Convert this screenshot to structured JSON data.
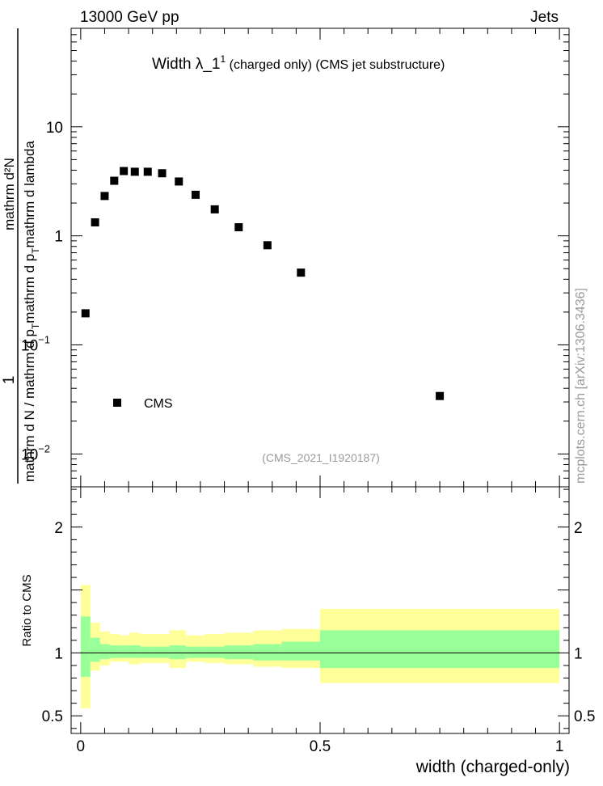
{
  "header": {
    "energy_label": "13000 GeV pp",
    "process_label": "Jets"
  },
  "side_label": "mcplots.cern.ch [arXiv:1306.3436]",
  "colors": {
    "yellow_band": "#ffff99",
    "green_band": "#99ff99",
    "marker": "#000000",
    "watermark": "#999999"
  },
  "chart_data": [
    {
      "type": "scatter",
      "title_main": "Width λ_1",
      "title_sup": "1",
      "title_rest": " (charged only) (CMS jet substructure)",
      "watermark": "(CMS_2021_I1920187)",
      "ylabel_numerator": "1",
      "ylabel_den_a": "mathrm d N / mathrm d p",
      "ylabel_den_sub_a": "T",
      "ylabel_den_b": "mathrm d p",
      "ylabel_den_sub_b": "T",
      "ylabel_den_c": "mathrm d lambda",
      "ylabel_num_full": "mathrm d²N",
      "yscale": "log",
      "ylim": [
        0.005,
        80
      ],
      "xlim": [
        -0.02,
        1.02
      ],
      "y_ticks": [
        {
          "value": 0.01,
          "label": "10",
          "exp": "−2"
        },
        {
          "value": 0.1,
          "label": "10",
          "exp": "−1"
        },
        {
          "value": 1,
          "label": "1",
          "exp": ""
        },
        {
          "value": 10,
          "label": "10",
          "exp": ""
        }
      ],
      "legend": {
        "label": "CMS",
        "position": "lower-left"
      },
      "series": [
        {
          "name": "CMS",
          "x": [
            0.01,
            0.03,
            0.05,
            0.07,
            0.09,
            0.113,
            0.14,
            0.17,
            0.205,
            0.24,
            0.28,
            0.33,
            0.39,
            0.46,
            0.75
          ],
          "y": [
            0.195,
            1.33,
            2.32,
            3.2,
            3.93,
            3.87,
            3.87,
            3.75,
            3.15,
            2.38,
            1.75,
            1.2,
            0.82,
            0.46,
            0.034
          ]
        }
      ]
    },
    {
      "type": "area",
      "ylabel": "Ratio to CMS",
      "xlabel": "width (charged-only)",
      "ylim": [
        0.36,
        2.32
      ],
      "xlim": [
        -0.02,
        1.02
      ],
      "y_ticks": [
        {
          "value": 0.5,
          "label": "0.5"
        },
        {
          "value": 1,
          "label": "1"
        },
        {
          "value": 2,
          "label": "2"
        }
      ],
      "x_ticks": [
        {
          "value": 0,
          "label": "0"
        },
        {
          "value": 0.5,
          "label": "0.5"
        },
        {
          "value": 1,
          "label": "1"
        }
      ],
      "bins": [
        {
          "lo": 0.0,
          "hi": 0.02,
          "y_lo": 0.56,
          "y_hi": 1.54,
          "g_lo": 0.81,
          "g_hi": 1.29
        },
        {
          "lo": 0.02,
          "hi": 0.04,
          "y_lo": 0.86,
          "y_hi": 1.24,
          "g_lo": 0.93,
          "g_hi": 1.12
        },
        {
          "lo": 0.04,
          "hi": 0.06,
          "y_lo": 0.9,
          "y_hi": 1.17,
          "g_lo": 0.95,
          "g_hi": 1.07
        },
        {
          "lo": 0.06,
          "hi": 0.08,
          "y_lo": 0.93,
          "y_hi": 1.15,
          "g_lo": 0.96,
          "g_hi": 1.06
        },
        {
          "lo": 0.08,
          "hi": 0.1,
          "y_lo": 0.93,
          "y_hi": 1.14,
          "g_lo": 0.96,
          "g_hi": 1.06
        },
        {
          "lo": 0.1,
          "hi": 0.125,
          "y_lo": 0.91,
          "y_hi": 1.16,
          "g_lo": 0.96,
          "g_hi": 1.06
        },
        {
          "lo": 0.125,
          "hi": 0.155,
          "y_lo": 0.92,
          "y_hi": 1.15,
          "g_lo": 0.96,
          "g_hi": 1.05
        },
        {
          "lo": 0.155,
          "hi": 0.185,
          "y_lo": 0.92,
          "y_hi": 1.15,
          "g_lo": 0.96,
          "g_hi": 1.05
        },
        {
          "lo": 0.185,
          "hi": 0.22,
          "y_lo": 0.88,
          "y_hi": 1.18,
          "g_lo": 0.95,
          "g_hi": 1.06
        },
        {
          "lo": 0.22,
          "hi": 0.26,
          "y_lo": 0.93,
          "y_hi": 1.14,
          "g_lo": 0.96,
          "g_hi": 1.05
        },
        {
          "lo": 0.26,
          "hi": 0.3,
          "y_lo": 0.92,
          "y_hi": 1.15,
          "g_lo": 0.96,
          "g_hi": 1.05
        },
        {
          "lo": 0.3,
          "hi": 0.36,
          "y_lo": 0.91,
          "y_hi": 1.16,
          "g_lo": 0.95,
          "g_hi": 1.06
        },
        {
          "lo": 0.36,
          "hi": 0.42,
          "y_lo": 0.89,
          "y_hi": 1.18,
          "g_lo": 0.94,
          "g_hi": 1.07
        },
        {
          "lo": 0.42,
          "hi": 0.5,
          "y_lo": 0.88,
          "y_hi": 1.19,
          "g_lo": 0.94,
          "g_hi": 1.09
        },
        {
          "lo": 0.5,
          "hi": 1.0,
          "y_lo": 0.76,
          "y_hi": 1.35,
          "g_lo": 0.88,
          "g_hi": 1.18
        }
      ]
    }
  ]
}
